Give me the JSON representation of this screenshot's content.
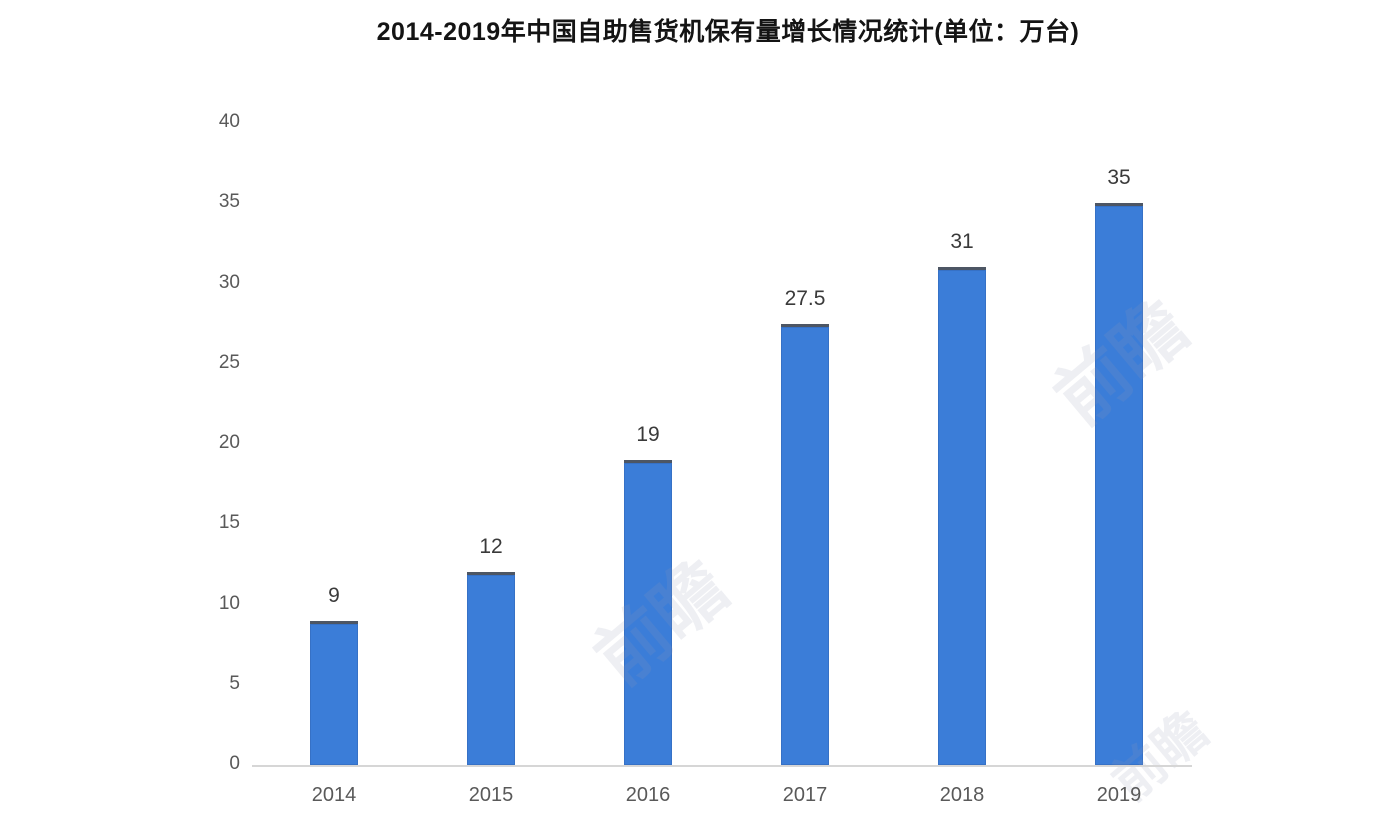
{
  "chart_data": {
    "type": "bar",
    "title": "2014-2019年中国自助售货机保有量增长情况统计(单位：万台)",
    "categories": [
      "2014",
      "2015",
      "2016",
      "2017",
      "2018",
      "2019"
    ],
    "values": [
      9,
      12,
      19,
      27.5,
      31,
      35
    ],
    "xlabel": "",
    "ylabel": "",
    "ylim": [
      0,
      40
    ],
    "ytick_step": 5,
    "ytick_labels": [
      "0",
      "5",
      "10",
      "15",
      "20",
      "25",
      "30",
      "35",
      "40"
    ],
    "grid": false,
    "legend": null,
    "bar_color": "#3b7dd8",
    "bar_top_edge_color": "#4d5664",
    "axis_line_color": "#d6d6d6",
    "tick_label_color": "#595959",
    "value_label_color": "#3a3a3a",
    "title_color": "#141414",
    "background_color": "#ffffff"
  },
  "watermarks": [
    {
      "text": "前瞻"
    },
    {
      "text": "前瞻"
    },
    {
      "text": "前瞻"
    }
  ]
}
